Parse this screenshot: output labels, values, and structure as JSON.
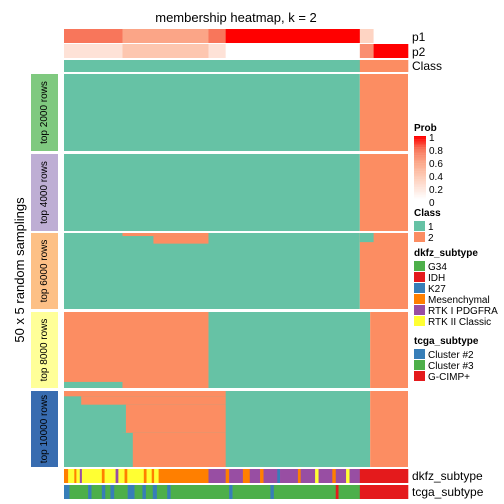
{
  "chart_data": {
    "type": "heatmap",
    "title": "membership heatmap, k = 2",
    "ylabel": "50 x 5 random samplings",
    "colors": {
      "class1": "#66C2A5",
      "class2": "#FC8D62",
      "prob_scale": [
        "#FFFFFF",
        "#FEE2D7",
        "#FDC6AF",
        "#FBA587",
        "#F8765B",
        "#FF0000"
      ],
      "row_groups": [
        "#7FC97F",
        "#BEAED4",
        "#FDC086",
        "#FFFF99",
        "#386CB0"
      ]
    },
    "annotation_rows": [
      "p1",
      "p2",
      "Class"
    ],
    "bottom_annotations": [
      "dkfz_subtype",
      "tcga_subtype"
    ],
    "row_groups": [
      "top 2000 rows",
      "top 4000 rows",
      "top 6000 rows",
      "top 8000 rows",
      "top 10000 rows"
    ],
    "legends": [
      {
        "title": "Prob",
        "ticks": [
          "1",
          "0.8",
          "0.6",
          "0.4",
          "0.2",
          "0"
        ]
      },
      {
        "title": "Class",
        "entries": [
          {
            "label": "1",
            "color": "#66C2A5"
          },
          {
            "label": "2",
            "color": "#FC8D62"
          }
        ]
      },
      {
        "title": "dkfz_subtype",
        "entries": [
          {
            "label": "G34",
            "color": "#4DAF4A"
          },
          {
            "label": "IDH",
            "color": "#E41A1C"
          },
          {
            "label": "K27",
            "color": "#377EB8"
          },
          {
            "label": "Mesenchymal",
            "color": "#FF7F00"
          },
          {
            "label": "RTK I PDGFRA",
            "color": "#984EA3"
          },
          {
            "label": "RTK II Classic",
            "color": "#FFFF33"
          }
        ]
      },
      {
        "title": "tcga_subtype",
        "entries": [
          {
            "label": "Cluster #2",
            "color": "#377EB8"
          },
          {
            "label": "Cluster #3",
            "color": "#4DAF4A"
          },
          {
            "label": "G-CIMP+",
            "color": "#E41A1C"
          }
        ]
      }
    ],
    "p1_segments": [
      {
        "from": 0.0,
        "to": 0.17,
        "value": 0.8
      },
      {
        "from": 0.17,
        "to": 0.42,
        "value": 0.6
      },
      {
        "from": 0.42,
        "to": 0.47,
        "value": 0.8
      },
      {
        "from": 0.47,
        "to": 0.86,
        "value": 1.0
      },
      {
        "from": 0.86,
        "to": 0.9,
        "value": 0.3
      },
      {
        "from": 0.9,
        "to": 1.0,
        "value": 0.0
      }
    ],
    "p2_segments": [
      {
        "from": 0.0,
        "to": 0.17,
        "value": 0.2
      },
      {
        "from": 0.17,
        "to": 0.42,
        "value": 0.4
      },
      {
        "from": 0.42,
        "to": 0.47,
        "value": 0.2
      },
      {
        "from": 0.47,
        "to": 0.86,
        "value": 0.0
      },
      {
        "from": 0.86,
        "to": 0.9,
        "value": 0.7
      },
      {
        "from": 0.9,
        "to": 1.0,
        "value": 1.0
      }
    ],
    "class_segments": [
      {
        "from": 0.0,
        "to": 0.86,
        "class": 1
      },
      {
        "from": 0.86,
        "to": 1.0,
        "class": 2
      }
    ],
    "group_cells": [
      [
        {
          "r0": 0,
          "r1": 1,
          "c0": 0,
          "c1": 0.86,
          "class": 1
        },
        {
          "r0": 0,
          "r1": 1,
          "c0": 0.86,
          "c1": 1,
          "class": 2
        }
      ],
      [
        {
          "r0": 0,
          "r1": 1,
          "c0": 0,
          "c1": 0.86,
          "class": 1
        },
        {
          "r0": 0,
          "r1": 1,
          "c0": 0.86,
          "c1": 1,
          "class": 2
        }
      ],
      [
        {
          "r0": 0,
          "r1": 1,
          "c0": 0,
          "c1": 0.86,
          "class": 1
        },
        {
          "r0": 0,
          "r1": 1,
          "c0": 0.86,
          "c1": 1,
          "class": 2
        },
        {
          "r0": 0,
          "r1": 0.04,
          "c0": 0.17,
          "c1": 0.42,
          "class": 2
        },
        {
          "r0": 0.04,
          "r1": 0.14,
          "c0": 0.26,
          "c1": 0.42,
          "class": 2
        },
        {
          "r0": 0,
          "r1": 0.12,
          "c0": 0.86,
          "c1": 0.9,
          "class": 1
        }
      ],
      [
        {
          "r0": 0,
          "r1": 1,
          "c0": 0,
          "c1": 0.42,
          "class": 2
        },
        {
          "r0": 0,
          "r1": 1,
          "c0": 0.42,
          "c1": 0.89,
          "class": 1
        },
        {
          "r0": 0,
          "r1": 1,
          "c0": 0.89,
          "c1": 1,
          "class": 2
        },
        {
          "r0": 0.92,
          "r1": 1,
          "c0": 0,
          "c1": 0.17,
          "class": 1
        }
      ],
      [
        {
          "r0": 0,
          "r1": 1,
          "c0": 0,
          "c1": 0.89,
          "class": 1
        },
        {
          "r0": 0,
          "r1": 1,
          "c0": 0.89,
          "c1": 1,
          "class": 2
        },
        {
          "r0": 0,
          "r1": 0.07,
          "c0": 0,
          "c1": 0.47,
          "class": 2
        },
        {
          "r0": 0.07,
          "r1": 0.18,
          "c0": 0.05,
          "c1": 0.47,
          "class": 2
        },
        {
          "r0": 0.18,
          "r1": 0.55,
          "c0": 0.17,
          "c1": 0.47,
          "class": 2
        },
        {
          "r0": 0.55,
          "r1": 1,
          "c0": 0.2,
          "c1": 0.47,
          "class": 2
        },
        {
          "r0": 0.18,
          "r1": 0.55,
          "c0": 0.17,
          "c1": 0.18,
          "class": 1
        }
      ]
    ],
    "dkfz_segments": [
      {
        "from": 0.0,
        "to": 0.012,
        "color": "#FF7F00"
      },
      {
        "from": 0.012,
        "to": 0.03,
        "color": "#FFFF33"
      },
      {
        "from": 0.03,
        "to": 0.036,
        "color": "#FF7F00"
      },
      {
        "from": 0.036,
        "to": 0.046,
        "color": "#FFFF33"
      },
      {
        "from": 0.046,
        "to": 0.052,
        "color": "#984EA3"
      },
      {
        "from": 0.052,
        "to": 0.11,
        "color": "#FFFF33"
      },
      {
        "from": 0.11,
        "to": 0.118,
        "color": "#FF7F00"
      },
      {
        "from": 0.118,
        "to": 0.15,
        "color": "#FFFF33"
      },
      {
        "from": 0.15,
        "to": 0.158,
        "color": "#984EA3"
      },
      {
        "from": 0.158,
        "to": 0.176,
        "color": "#FFFF33"
      },
      {
        "from": 0.176,
        "to": 0.184,
        "color": "#FF7F00"
      },
      {
        "from": 0.184,
        "to": 0.232,
        "color": "#FFFF33"
      },
      {
        "from": 0.232,
        "to": 0.24,
        "color": "#FF7F00"
      },
      {
        "from": 0.24,
        "to": 0.255,
        "color": "#FFFF33"
      },
      {
        "from": 0.255,
        "to": 0.262,
        "color": "#FF7F00"
      },
      {
        "from": 0.262,
        "to": 0.275,
        "color": "#FFFF33"
      },
      {
        "from": 0.275,
        "to": 0.42,
        "color": "#FF7F00"
      },
      {
        "from": 0.42,
        "to": 0.47,
        "color": "#984EA3"
      },
      {
        "from": 0.47,
        "to": 0.48,
        "color": "#FF7F00"
      },
      {
        "from": 0.48,
        "to": 0.52,
        "color": "#984EA3"
      },
      {
        "from": 0.52,
        "to": 0.54,
        "color": "#FF7F00"
      },
      {
        "from": 0.54,
        "to": 0.57,
        "color": "#984EA3"
      },
      {
        "from": 0.57,
        "to": 0.58,
        "color": "#FF7F00"
      },
      {
        "from": 0.58,
        "to": 0.62,
        "color": "#984EA3"
      },
      {
        "from": 0.62,
        "to": 0.628,
        "color": "#377EB8"
      },
      {
        "from": 0.628,
        "to": 0.68,
        "color": "#984EA3"
      },
      {
        "from": 0.68,
        "to": 0.688,
        "color": "#FF7F00"
      },
      {
        "from": 0.688,
        "to": 0.73,
        "color": "#984EA3"
      },
      {
        "from": 0.73,
        "to": 0.74,
        "color": "#FFFF33"
      },
      {
        "from": 0.74,
        "to": 0.78,
        "color": "#984EA3"
      },
      {
        "from": 0.78,
        "to": 0.79,
        "color": "#FF7F00"
      },
      {
        "from": 0.79,
        "to": 0.82,
        "color": "#984EA3"
      },
      {
        "from": 0.82,
        "to": 0.83,
        "color": "#FFFF33"
      },
      {
        "from": 0.83,
        "to": 0.86,
        "color": "#984EA3"
      },
      {
        "from": 0.86,
        "to": 1.0,
        "color": "#E41A1C"
      }
    ],
    "tcga_segments": [
      {
        "from": 0.0,
        "to": 0.016,
        "color": "#377EB8"
      },
      {
        "from": 0.016,
        "to": 0.07,
        "color": "#4DAF4A"
      },
      {
        "from": 0.07,
        "to": 0.08,
        "color": "#377EB8"
      },
      {
        "from": 0.08,
        "to": 0.11,
        "color": "#4DAF4A"
      },
      {
        "from": 0.11,
        "to": 0.12,
        "color": "#377EB8"
      },
      {
        "from": 0.12,
        "to": 0.135,
        "color": "#4DAF4A"
      },
      {
        "from": 0.135,
        "to": 0.146,
        "color": "#377EB8"
      },
      {
        "from": 0.146,
        "to": 0.185,
        "color": "#4DAF4A"
      },
      {
        "from": 0.185,
        "to": 0.205,
        "color": "#377EB8"
      },
      {
        "from": 0.205,
        "to": 0.228,
        "color": "#4DAF4A"
      },
      {
        "from": 0.228,
        "to": 0.238,
        "color": "#377EB8"
      },
      {
        "from": 0.238,
        "to": 0.258,
        "color": "#4DAF4A"
      },
      {
        "from": 0.258,
        "to": 0.27,
        "color": "#377EB8"
      },
      {
        "from": 0.27,
        "to": 0.3,
        "color": "#4DAF4A"
      },
      {
        "from": 0.3,
        "to": 0.31,
        "color": "#377EB8"
      },
      {
        "from": 0.31,
        "to": 0.48,
        "color": "#4DAF4A"
      },
      {
        "from": 0.48,
        "to": 0.49,
        "color": "#377EB8"
      },
      {
        "from": 0.49,
        "to": 0.6,
        "color": "#4DAF4A"
      },
      {
        "from": 0.6,
        "to": 0.61,
        "color": "#377EB8"
      },
      {
        "from": 0.61,
        "to": 0.79,
        "color": "#4DAF4A"
      },
      {
        "from": 0.79,
        "to": 0.798,
        "color": "#E41A1C"
      },
      {
        "from": 0.798,
        "to": 0.86,
        "color": "#4DAF4A"
      },
      {
        "from": 0.86,
        "to": 1.0,
        "color": "#E41A1C"
      }
    ]
  }
}
